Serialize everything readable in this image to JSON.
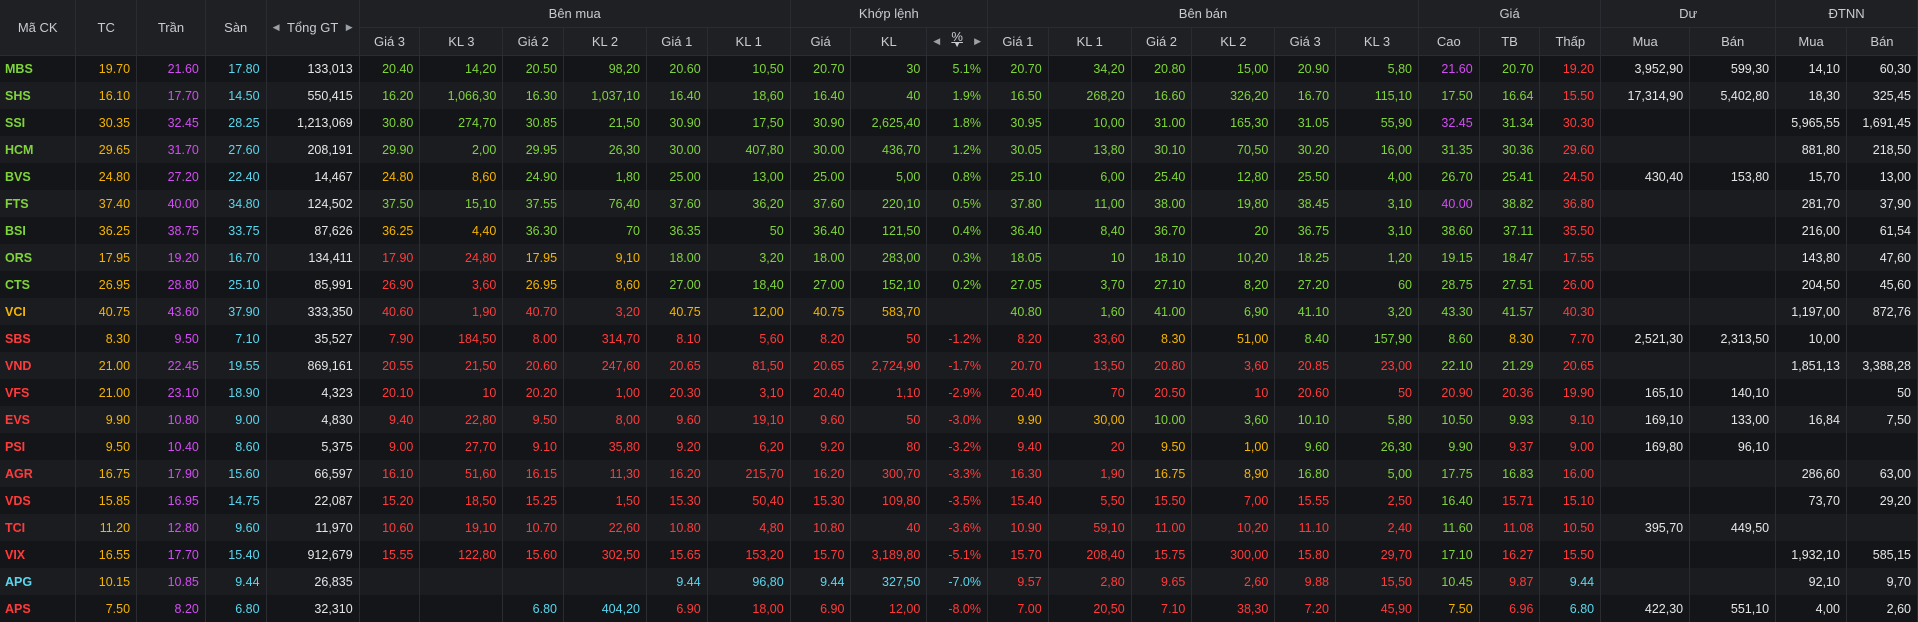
{
  "headers": {
    "ma_ck": "Mã CK",
    "tc": "TC",
    "tran": "Trần",
    "san": "Sàn",
    "tong_gt": "Tổng GT",
    "ben_mua": "Bên mua",
    "khop_lenh": "Khớp lệnh",
    "ben_ban": "Bên bán",
    "gia": "Giá",
    "du": "Dư",
    "dtnn": "ĐTNN",
    "gia3": "Giá 3",
    "kl3": "KL 3",
    "gia2": "Giá 2",
    "kl2": "KL 2",
    "gia1": "Giá 1",
    "kl1": "KL 1",
    "kl_gia": "Giá",
    "kl_kl": "KL",
    "kl_pct": "%",
    "sell_gia1": "Giá 1",
    "sell_kl1": "KL 1",
    "sell_gia2": "Giá 2",
    "sell_kl2": "KL 2",
    "sell_gia3": "Giá 3",
    "sell_kl3": "KL 3",
    "cao": "Cao",
    "tb": "TB",
    "thap": "Thấp",
    "du_mua": "Mua",
    "du_ban": "Bán",
    "nn_mua": "Mua",
    "nn_ban": "Bán"
  },
  "colors": {
    "up": "#7fd43b",
    "down": "#ff3b3b",
    "ref": "#f5b400",
    "ceil": "#d24df3",
    "floor": "#5ad7ee",
    "plain": "#e6e6e6"
  },
  "rows": [
    {
      "sym": "MBS",
      "tc": "19.70",
      "tran": "21.60",
      "san": "17.80",
      "tong": "133,013",
      "b_g3": "20.40",
      "b_k3": "14,20",
      "b_g2": "20.50",
      "b_k2": "98,20",
      "b_g1": "20.60",
      "b_k1": "10,50",
      "m_g": "20.70",
      "m_kl": "30",
      "m_pct": "5.1%",
      "s_g1": "20.70",
      "s_k1": "34,20",
      "s_g2": "20.80",
      "s_k2": "15,00",
      "s_g3": "20.90",
      "s_k3": "5,80",
      "cao": "21.60",
      "tb": "20.70",
      "thap": "19.20",
      "du_mua": "3,952,90",
      "du_ban": "599,30",
      "nn_mua": "14,10",
      "nn_ban": "60,30",
      "c": {
        "sym": "up",
        "b3": "up",
        "b2": "up",
        "b1": "up",
        "m": "up",
        "s1": "up",
        "s2": "up",
        "s3": "up",
        "cao": "ceil",
        "tb": "up",
        "thap": "down"
      }
    },
    {
      "sym": "SHS",
      "tc": "16.10",
      "tran": "17.70",
      "san": "14.50",
      "tong": "550,415",
      "b_g3": "16.20",
      "b_k3": "1,066,30",
      "b_g2": "16.30",
      "b_k2": "1,037,10",
      "b_g1": "16.40",
      "b_k1": "18,60",
      "m_g": "16.40",
      "m_kl": "40",
      "m_pct": "1.9%",
      "s_g1": "16.50",
      "s_k1": "268,20",
      "s_g2": "16.60",
      "s_k2": "326,20",
      "s_g3": "16.70",
      "s_k3": "115,10",
      "cao": "17.50",
      "tb": "16.64",
      "thap": "15.50",
      "du_mua": "17,314,90",
      "du_ban": "5,402,80",
      "nn_mua": "18,30",
      "nn_ban": "325,45",
      "c": {
        "sym": "up",
        "b3": "up",
        "b2": "up",
        "b1": "up",
        "m": "up",
        "s1": "up",
        "s2": "up",
        "s3": "up",
        "cao": "up",
        "tb": "up",
        "thap": "down"
      }
    },
    {
      "sym": "SSI",
      "tc": "30.35",
      "tran": "32.45",
      "san": "28.25",
      "tong": "1,213,069",
      "b_g3": "30.80",
      "b_k3": "274,70",
      "b_g2": "30.85",
      "b_k2": "21,50",
      "b_g1": "30.90",
      "b_k1": "17,50",
      "m_g": "30.90",
      "m_kl": "2,625,40",
      "m_pct": "1.8%",
      "s_g1": "30.95",
      "s_k1": "10,00",
      "s_g2": "31.00",
      "s_k2": "165,30",
      "s_g3": "31.05",
      "s_k3": "55,90",
      "cao": "32.45",
      "tb": "31.34",
      "thap": "30.30",
      "du_mua": "",
      "du_ban": "",
      "nn_mua": "5,965,55",
      "nn_ban": "1,691,45",
      "c": {
        "sym": "up",
        "b3": "up",
        "b2": "up",
        "b1": "up",
        "m": "up",
        "s1": "up",
        "s2": "up",
        "s3": "up",
        "cao": "ceil",
        "tb": "up",
        "thap": "down"
      }
    },
    {
      "sym": "HCM",
      "tc": "29.65",
      "tran": "31.70",
      "san": "27.60",
      "tong": "208,191",
      "b_g3": "29.90",
      "b_k3": "2,00",
      "b_g2": "29.95",
      "b_k2": "26,30",
      "b_g1": "30.00",
      "b_k1": "407,80",
      "m_g": "30.00",
      "m_kl": "436,70",
      "m_pct": "1.2%",
      "s_g1": "30.05",
      "s_k1": "13,80",
      "s_g2": "30.10",
      "s_k2": "70,50",
      "s_g3": "30.20",
      "s_k3": "16,00",
      "cao": "31.35",
      "tb": "30.36",
      "thap": "29.60",
      "du_mua": "",
      "du_ban": "",
      "nn_mua": "881,80",
      "nn_ban": "218,50",
      "c": {
        "sym": "up",
        "b3": "up",
        "b2": "up",
        "b1": "up",
        "m": "up",
        "s1": "up",
        "s2": "up",
        "s3": "up",
        "cao": "up",
        "tb": "up",
        "thap": "down"
      }
    },
    {
      "sym": "BVS",
      "tc": "24.80",
      "tran": "27.20",
      "san": "22.40",
      "tong": "14,467",
      "b_g3": "24.80",
      "b_k3": "8,60",
      "b_g2": "24.90",
      "b_k2": "1,80",
      "b_g1": "25.00",
      "b_k1": "13,00",
      "m_g": "25.00",
      "m_kl": "5,00",
      "m_pct": "0.8%",
      "s_g1": "25.10",
      "s_k1": "6,00",
      "s_g2": "25.40",
      "s_k2": "12,80",
      "s_g3": "25.50",
      "s_k3": "4,00",
      "cao": "26.70",
      "tb": "25.41",
      "thap": "24.50",
      "du_mua": "430,40",
      "du_ban": "153,80",
      "nn_mua": "15,70",
      "nn_ban": "13,00",
      "c": {
        "sym": "up",
        "b3": "ref",
        "b2": "up",
        "b1": "up",
        "m": "up",
        "s1": "up",
        "s2": "up",
        "s3": "up",
        "cao": "up",
        "tb": "up",
        "thap": "down"
      }
    },
    {
      "sym": "FTS",
      "tc": "37.40",
      "tran": "40.00",
      "san": "34.80",
      "tong": "124,502",
      "b_g3": "37.50",
      "b_k3": "15,10",
      "b_g2": "37.55",
      "b_k2": "76,40",
      "b_g1": "37.60",
      "b_k1": "36,20",
      "m_g": "37.60",
      "m_kl": "220,10",
      "m_pct": "0.5%",
      "s_g1": "37.80",
      "s_k1": "11,00",
      "s_g2": "38.00",
      "s_k2": "19,80",
      "s_g3": "38.45",
      "s_k3": "3,10",
      "cao": "40.00",
      "tb": "38.82",
      "thap": "36.80",
      "du_mua": "",
      "du_ban": "",
      "nn_mua": "281,70",
      "nn_ban": "37,90",
      "c": {
        "sym": "up",
        "b3": "up",
        "b2": "up",
        "b1": "up",
        "m": "up",
        "s1": "up",
        "s2": "up",
        "s3": "up",
        "cao": "ceil",
        "tb": "up",
        "thap": "down"
      }
    },
    {
      "sym": "BSI",
      "tc": "36.25",
      "tran": "38.75",
      "san": "33.75",
      "tong": "87,626",
      "b_g3": "36.25",
      "b_k3": "4,40",
      "b_g2": "36.30",
      "b_k2": "70",
      "b_g1": "36.35",
      "b_k1": "50",
      "m_g": "36.40",
      "m_kl": "121,50",
      "m_pct": "0.4%",
      "s_g1": "36.40",
      "s_k1": "8,40",
      "s_g2": "36.70",
      "s_k2": "20",
      "s_g3": "36.75",
      "s_k3": "3,10",
      "cao": "38.60",
      "tb": "37.11",
      "thap": "35.50",
      "du_mua": "",
      "du_ban": "",
      "nn_mua": "216,00",
      "nn_ban": "61,54",
      "c": {
        "sym": "up",
        "b3": "ref",
        "b2": "up",
        "b1": "up",
        "m": "up",
        "s1": "up",
        "s2": "up",
        "s3": "up",
        "cao": "up",
        "tb": "up",
        "thap": "down"
      }
    },
    {
      "sym": "ORS",
      "tc": "17.95",
      "tran": "19.20",
      "san": "16.70",
      "tong": "134,411",
      "b_g3": "17.90",
      "b_k3": "24,80",
      "b_g2": "17.95",
      "b_k2": "9,10",
      "b_g1": "18.00",
      "b_k1": "3,20",
      "m_g": "18.00",
      "m_kl": "283,00",
      "m_pct": "0.3%",
      "s_g1": "18.05",
      "s_k1": "10",
      "s_g2": "18.10",
      "s_k2": "10,20",
      "s_g3": "18.25",
      "s_k3": "1,20",
      "cao": "19.15",
      "tb": "18.47",
      "thap": "17.55",
      "du_mua": "",
      "du_ban": "",
      "nn_mua": "143,80",
      "nn_ban": "47,60",
      "c": {
        "sym": "up",
        "b3": "down",
        "b2": "ref",
        "b1": "up",
        "m": "up",
        "s1": "up",
        "s2": "up",
        "s3": "up",
        "cao": "up",
        "tb": "up",
        "thap": "down"
      }
    },
    {
      "sym": "CTS",
      "tc": "26.95",
      "tran": "28.80",
      "san": "25.10",
      "tong": "85,991",
      "b_g3": "26.90",
      "b_k3": "3,60",
      "b_g2": "26.95",
      "b_k2": "8,60",
      "b_g1": "27.00",
      "b_k1": "18,40",
      "m_g": "27.00",
      "m_kl": "152,10",
      "m_pct": "0.2%",
      "s_g1": "27.05",
      "s_k1": "3,70",
      "s_g2": "27.10",
      "s_k2": "8,20",
      "s_g3": "27.20",
      "s_k3": "60",
      "cao": "28.75",
      "tb": "27.51",
      "thap": "26.00",
      "du_mua": "",
      "du_ban": "",
      "nn_mua": "204,50",
      "nn_ban": "45,60",
      "c": {
        "sym": "up",
        "b3": "down",
        "b2": "ref",
        "b1": "up",
        "m": "up",
        "s1": "up",
        "s2": "up",
        "s3": "up",
        "cao": "up",
        "tb": "up",
        "thap": "down"
      }
    },
    {
      "sym": "VCI",
      "tc": "40.75",
      "tran": "43.60",
      "san": "37.90",
      "tong": "333,350",
      "b_g3": "40.60",
      "b_k3": "1,90",
      "b_g2": "40.70",
      "b_k2": "3,20",
      "b_g1": "40.75",
      "b_k1": "12,00",
      "m_g": "40.75",
      "m_kl": "583,70",
      "m_pct": "",
      "s_g1": "40.80",
      "s_k1": "1,60",
      "s_g2": "41.00",
      "s_k2": "6,90",
      "s_g3": "41.10",
      "s_k3": "3,20",
      "cao": "43.30",
      "tb": "41.57",
      "thap": "40.30",
      "du_mua": "",
      "du_ban": "",
      "nn_mua": "1,197,00",
      "nn_ban": "872,76",
      "c": {
        "sym": "ref",
        "b3": "down",
        "b2": "down",
        "b1": "ref",
        "m": "ref",
        "s1": "up",
        "s2": "up",
        "s3": "up",
        "cao": "up",
        "tb": "up",
        "thap": "down"
      }
    },
    {
      "sym": "SBS",
      "tc": "8.30",
      "tran": "9.50",
      "san": "7.10",
      "tong": "35,527",
      "b_g3": "7.90",
      "b_k3": "184,50",
      "b_g2": "8.00",
      "b_k2": "314,70",
      "b_g1": "8.10",
      "b_k1": "5,60",
      "m_g": "8.20",
      "m_kl": "50",
      "m_pct": "-1.2%",
      "s_g1": "8.20",
      "s_k1": "33,60",
      "s_g2": "8.30",
      "s_k2": "51,00",
      "s_g3": "8.40",
      "s_k3": "157,90",
      "cao": "8.60",
      "tb": "8.30",
      "thap": "7.70",
      "du_mua": "2,521,30",
      "du_ban": "2,313,50",
      "nn_mua": "10,00",
      "nn_ban": "",
      "c": {
        "sym": "down",
        "b3": "down",
        "b2": "down",
        "b1": "down",
        "m": "down",
        "s1": "down",
        "s2": "ref",
        "s3": "up",
        "cao": "up",
        "tb": "ref",
        "thap": "down"
      }
    },
    {
      "sym": "VND",
      "tc": "21.00",
      "tran": "22.45",
      "san": "19.55",
      "tong": "869,161",
      "b_g3": "20.55",
      "b_k3": "21,50",
      "b_g2": "20.60",
      "b_k2": "247,60",
      "b_g1": "20.65",
      "b_k1": "81,50",
      "m_g": "20.65",
      "m_kl": "2,724,90",
      "m_pct": "-1.7%",
      "s_g1": "20.70",
      "s_k1": "13,50",
      "s_g2": "20.80",
      "s_k2": "3,60",
      "s_g3": "20.85",
      "s_k3": "23,00",
      "cao": "22.10",
      "tb": "21.29",
      "thap": "20.65",
      "du_mua": "",
      "du_ban": "",
      "nn_mua": "1,851,13",
      "nn_ban": "3,388,28",
      "c": {
        "sym": "down",
        "b3": "down",
        "b2": "down",
        "b1": "down",
        "m": "down",
        "s1": "down",
        "s2": "down",
        "s3": "down",
        "cao": "up",
        "tb": "up",
        "thap": "down"
      }
    },
    {
      "sym": "VFS",
      "tc": "21.00",
      "tran": "23.10",
      "san": "18.90",
      "tong": "4,323",
      "b_g3": "20.10",
      "b_k3": "10",
      "b_g2": "20.20",
      "b_k2": "1,00",
      "b_g1": "20.30",
      "b_k1": "3,10",
      "m_g": "20.40",
      "m_kl": "1,10",
      "m_pct": "-2.9%",
      "s_g1": "20.40",
      "s_k1": "70",
      "s_g2": "20.50",
      "s_k2": "10",
      "s_g3": "20.60",
      "s_k3": "50",
      "cao": "20.90",
      "tb": "20.36",
      "thap": "19.90",
      "du_mua": "165,10",
      "du_ban": "140,10",
      "nn_mua": "",
      "nn_ban": "50",
      "c": {
        "sym": "down",
        "b3": "down",
        "b2": "down",
        "b1": "down",
        "m": "down",
        "s1": "down",
        "s2": "down",
        "s3": "down",
        "cao": "down",
        "tb": "down",
        "thap": "down"
      }
    },
    {
      "sym": "EVS",
      "tc": "9.90",
      "tran": "10.80",
      "san": "9.00",
      "tong": "4,830",
      "b_g3": "9.40",
      "b_k3": "22,80",
      "b_g2": "9.50",
      "b_k2": "8,00",
      "b_g1": "9.60",
      "b_k1": "19,10",
      "m_g": "9.60",
      "m_kl": "50",
      "m_pct": "-3.0%",
      "s_g1": "9.90",
      "s_k1": "30,00",
      "s_g2": "10.00",
      "s_k2": "3,60",
      "s_g3": "10.10",
      "s_k3": "5,80",
      "cao": "10.50",
      "tb": "9.93",
      "thap": "9.10",
      "du_mua": "169,10",
      "du_ban": "133,00",
      "nn_mua": "16,84",
      "nn_ban": "7,50",
      "c": {
        "sym": "down",
        "b3": "down",
        "b2": "down",
        "b1": "down",
        "m": "down",
        "s1": "ref",
        "s2": "up",
        "s3": "up",
        "cao": "up",
        "tb": "up",
        "thap": "down"
      }
    },
    {
      "sym": "PSI",
      "tc": "9.50",
      "tran": "10.40",
      "san": "8.60",
      "tong": "5,375",
      "b_g3": "9.00",
      "b_k3": "27,70",
      "b_g2": "9.10",
      "b_k2": "35,80",
      "b_g1": "9.20",
      "b_k1": "6,20",
      "m_g": "9.20",
      "m_kl": "80",
      "m_pct": "-3.2%",
      "s_g1": "9.40",
      "s_k1": "20",
      "s_g2": "9.50",
      "s_k2": "1,00",
      "s_g3": "9.60",
      "s_k3": "26,30",
      "cao": "9.90",
      "tb": "9.37",
      "thap": "9.00",
      "du_mua": "169,80",
      "du_ban": "96,10",
      "nn_mua": "",
      "nn_ban": "",
      "c": {
        "sym": "down",
        "b3": "down",
        "b2": "down",
        "b1": "down",
        "m": "down",
        "s1": "down",
        "s2": "ref",
        "s3": "up",
        "cao": "up",
        "tb": "down",
        "thap": "down"
      }
    },
    {
      "sym": "AGR",
      "tc": "16.75",
      "tran": "17.90",
      "san": "15.60",
      "tong": "66,597",
      "b_g3": "16.10",
      "b_k3": "51,60",
      "b_g2": "16.15",
      "b_k2": "11,30",
      "b_g1": "16.20",
      "b_k1": "215,70",
      "m_g": "16.20",
      "m_kl": "300,70",
      "m_pct": "-3.3%",
      "s_g1": "16.30",
      "s_k1": "1,90",
      "s_g2": "16.75",
      "s_k2": "8,90",
      "s_g3": "16.80",
      "s_k3": "5,00",
      "cao": "17.75",
      "tb": "16.83",
      "thap": "16.00",
      "du_mua": "",
      "du_ban": "",
      "nn_mua": "286,60",
      "nn_ban": "63,00",
      "c": {
        "sym": "down",
        "b3": "down",
        "b2": "down",
        "b1": "down",
        "m": "down",
        "s1": "down",
        "s2": "ref",
        "s3": "up",
        "cao": "up",
        "tb": "up",
        "thap": "down"
      }
    },
    {
      "sym": "VDS",
      "tc": "15.85",
      "tran": "16.95",
      "san": "14.75",
      "tong": "22,087",
      "b_g3": "15.20",
      "b_k3": "18,50",
      "b_g2": "15.25",
      "b_k2": "1,50",
      "b_g1": "15.30",
      "b_k1": "50,40",
      "m_g": "15.30",
      "m_kl": "109,80",
      "m_pct": "-3.5%",
      "s_g1": "15.40",
      "s_k1": "5,50",
      "s_g2": "15.50",
      "s_k2": "7,00",
      "s_g3": "15.55",
      "s_k3": "2,50",
      "cao": "16.40",
      "tb": "15.71",
      "thap": "15.10",
      "du_mua": "",
      "du_ban": "",
      "nn_mua": "73,70",
      "nn_ban": "29,20",
      "c": {
        "sym": "down",
        "b3": "down",
        "b2": "down",
        "b1": "down",
        "m": "down",
        "s1": "down",
        "s2": "down",
        "s3": "down",
        "cao": "up",
        "tb": "down",
        "thap": "down"
      }
    },
    {
      "sym": "TCI",
      "tc": "11.20",
      "tran": "12.80",
      "san": "9.60",
      "tong": "11,970",
      "b_g3": "10.60",
      "b_k3": "19,10",
      "b_g2": "10.70",
      "b_k2": "22,60",
      "b_g1": "10.80",
      "b_k1": "4,80",
      "m_g": "10.80",
      "m_kl": "40",
      "m_pct": "-3.6%",
      "s_g1": "10.90",
      "s_k1": "59,10",
      "s_g2": "11.00",
      "s_k2": "10,20",
      "s_g3": "11.10",
      "s_k3": "2,40",
      "cao": "11.60",
      "tb": "11.08",
      "thap": "10.50",
      "du_mua": "395,70",
      "du_ban": "449,50",
      "nn_mua": "",
      "nn_ban": "",
      "c": {
        "sym": "down",
        "b3": "down",
        "b2": "down",
        "b1": "down",
        "m": "down",
        "s1": "down",
        "s2": "down",
        "s3": "down",
        "cao": "up",
        "tb": "down",
        "thap": "down"
      }
    },
    {
      "sym": "VIX",
      "tc": "16.55",
      "tran": "17.70",
      "san": "15.40",
      "tong": "912,679",
      "b_g3": "15.55",
      "b_k3": "122,80",
      "b_g2": "15.60",
      "b_k2": "302,50",
      "b_g1": "15.65",
      "b_k1": "153,20",
      "m_g": "15.70",
      "m_kl": "3,189,80",
      "m_pct": "-5.1%",
      "s_g1": "15.70",
      "s_k1": "208,40",
      "s_g2": "15.75",
      "s_k2": "300,00",
      "s_g3": "15.80",
      "s_k3": "29,70",
      "cao": "17.10",
      "tb": "16.27",
      "thap": "15.50",
      "du_mua": "",
      "du_ban": "",
      "nn_mua": "1,932,10",
      "nn_ban": "585,15",
      "c": {
        "sym": "down",
        "b3": "down",
        "b2": "down",
        "b1": "down",
        "m": "down",
        "s1": "down",
        "s2": "down",
        "s3": "down",
        "cao": "up",
        "tb": "down",
        "thap": "down"
      }
    },
    {
      "sym": "APG",
      "tc": "10.15",
      "tran": "10.85",
      "san": "9.44",
      "tong": "26,835",
      "b_g3": "",
      "b_k3": "",
      "b_g2": "",
      "b_k2": "",
      "b_g1": "9.44",
      "b_k1": "96,80",
      "m_g": "9.44",
      "m_kl": "327,50",
      "m_pct": "-7.0%",
      "s_g1": "9.57",
      "s_k1": "2,80",
      "s_g2": "9.65",
      "s_k2": "2,60",
      "s_g3": "9.88",
      "s_k3": "15,50",
      "cao": "10.45",
      "tb": "9.87",
      "thap": "9.44",
      "du_mua": "",
      "du_ban": "",
      "nn_mua": "92,10",
      "nn_ban": "9,70",
      "c": {
        "sym": "floor",
        "b3": "down",
        "b2": "down",
        "b1": "floor",
        "m": "floor",
        "s1": "down",
        "s2": "down",
        "s3": "down",
        "cao": "up",
        "tb": "down",
        "thap": "floor"
      }
    },
    {
      "sym": "APS",
      "tc": "7.50",
      "tran": "8.20",
      "san": "6.80",
      "tong": "32,310",
      "b_g3": "",
      "b_k3": "",
      "b_g2": "6.80",
      "b_k2": "404,20",
      "b_g1": "6.90",
      "b_k1": "18,00",
      "m_g": "6.90",
      "m_kl": "12,00",
      "m_pct": "-8.0%",
      "s_g1": "7.00",
      "s_k1": "20,50",
      "s_g2": "7.10",
      "s_k2": "38,30",
      "s_g3": "7.20",
      "s_k3": "45,90",
      "cao": "7.50",
      "tb": "6.96",
      "thap": "6.80",
      "du_mua": "422,30",
      "du_ban": "551,10",
      "nn_mua": "4,00",
      "nn_ban": "2,60",
      "c": {
        "sym": "down",
        "b3": "down",
        "b2": "floor",
        "b1": "down",
        "m": "down",
        "s1": "down",
        "s2": "down",
        "s3": "down",
        "cao": "ref",
        "tb": "down",
        "thap": "floor"
      }
    }
  ]
}
